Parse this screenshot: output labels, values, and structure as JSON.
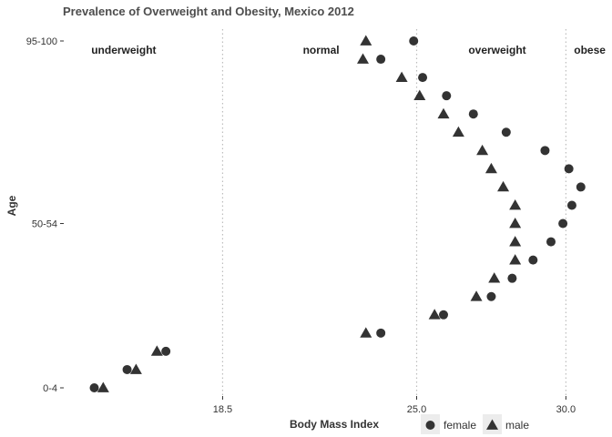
{
  "chart_data": {
    "type": "scatter",
    "title": "Prevalence of Overweight and Obesity, Mexico 2012",
    "xlabel": "Body Mass Index",
    "ylabel": "Age",
    "xlim": [
      13.3,
      31.3
    ],
    "x_ticks": [
      {
        "value": 18.5,
        "label": "18.5"
      },
      {
        "value": 25.0,
        "label": "25.0"
      },
      {
        "value": 30.0,
        "label": "30.0"
      }
    ],
    "y_ticks": [
      {
        "index": 0,
        "label": "0-4"
      },
      {
        "index": 9,
        "label": "50-54"
      },
      {
        "index": 19,
        "label": "95-100"
      }
    ],
    "y_count": 20,
    "grid": false,
    "reference_lines": [
      18.5,
      25.0,
      30.0
    ],
    "regions": [
      {
        "label": "underweight",
        "x": 14.1,
        "anchor": "start"
      },
      {
        "label": "normal",
        "x": 21.8,
        "anchor": "middle"
      },
      {
        "label": "overweight",
        "x": 27.7,
        "anchor": "middle"
      },
      {
        "label": "obese",
        "x": 30.8,
        "anchor": "middle"
      }
    ],
    "legend_position": "bottom-right",
    "series": [
      {
        "name": "female",
        "shape": "circle",
        "values": [
          14.2,
          15.3,
          16.6,
          23.8,
          25.9,
          27.5,
          28.2,
          28.9,
          29.5,
          29.9,
          30.2,
          30.5,
          30.1,
          29.3,
          28.0,
          26.9,
          26.0,
          25.2,
          23.8,
          24.9
        ]
      },
      {
        "name": "male",
        "shape": "triangle",
        "values": [
          14.5,
          15.6,
          16.3,
          23.3,
          25.6,
          27.0,
          27.6,
          28.3,
          28.3,
          28.3,
          28.3,
          27.9,
          27.5,
          27.2,
          26.4,
          25.9,
          25.1,
          24.5,
          23.2,
          23.3
        ]
      }
    ]
  }
}
